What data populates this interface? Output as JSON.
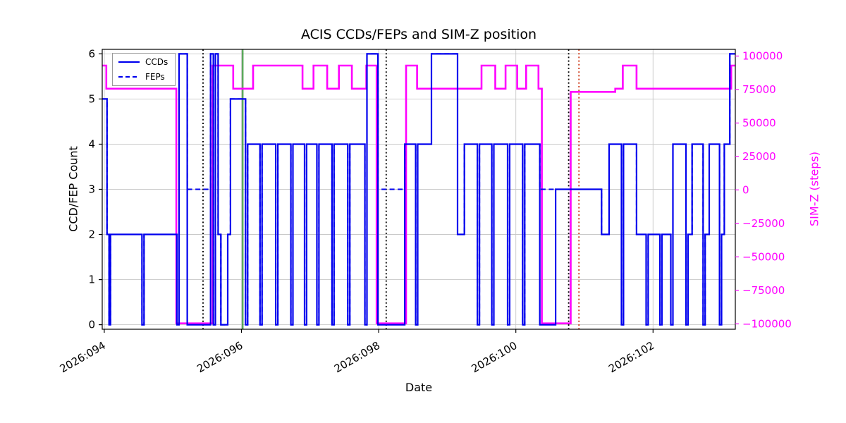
{
  "title": "ACIS CCDs/FEPs and SIM-Z position",
  "axes": {
    "xlabel": "Date",
    "ylabel_left": "CCD/FEP Count",
    "ylabel_right": "SIM-Z (steps)"
  },
  "legend": {
    "entries": [
      {
        "label": "CCDs",
        "line": "solid"
      },
      {
        "label": "FEPs",
        "line": "dashed"
      }
    ]
  },
  "chart_data": {
    "type": "line",
    "title": "ACIS CCDs/FEPs and SIM-Z position",
    "xlabel": "Date",
    "ylabel_left": "CCD/FEP Count",
    "ylabel_right": "SIM-Z (steps)",
    "grid": true,
    "legend_position": "upper left",
    "xlim": [
      93.97,
      103.2
    ],
    "ylim_left": [
      -0.1,
      6.1
    ],
    "ylim_right": [
      -104000,
      105000
    ],
    "x_ticks": [
      {
        "value": 94,
        "label": "2026:094"
      },
      {
        "value": 96,
        "label": "2026:096"
      },
      {
        "value": 98,
        "label": "2026:098"
      },
      {
        "value": 100,
        "label": "2026:100"
      },
      {
        "value": 102,
        "label": "2026:102"
      }
    ],
    "y_ticks_left": [
      {
        "value": 0,
        "label": "0"
      },
      {
        "value": 1,
        "label": "1"
      },
      {
        "value": 2,
        "label": "2"
      },
      {
        "value": 3,
        "label": "3"
      },
      {
        "value": 4,
        "label": "4"
      },
      {
        "value": 5,
        "label": "5"
      },
      {
        "value": 6,
        "label": "6"
      }
    ],
    "y_ticks_right": [
      {
        "value": 100000,
        "label": "100000"
      },
      {
        "value": 75000,
        "label": "75000"
      },
      {
        "value": 50000,
        "label": "50000"
      },
      {
        "value": 25000,
        "label": "25000"
      },
      {
        "value": 0,
        "label": "0"
      },
      {
        "value": -25000,
        "label": "−25000"
      },
      {
        "value": -50000,
        "label": "−50000"
      },
      {
        "value": -75000,
        "label": "−75000"
      },
      {
        "value": -100000,
        "label": "−100000"
      }
    ],
    "colors": {
      "line_blue": "#0000ee",
      "simz_magenta": "#ff00ff",
      "grid": "#c8c8c8",
      "black": "#000000",
      "green_vline": "#228b22",
      "red_vline": "#cc3311"
    },
    "series": [
      {
        "name": "CCDs",
        "axis": "left",
        "style": "solid",
        "color_key": "line_blue",
        "width": 2.2,
        "steps": [
          [
            93.97,
            5
          ],
          [
            94.04,
            2
          ],
          [
            94.07,
            0
          ],
          [
            94.09,
            2
          ],
          [
            94.55,
            0
          ],
          [
            94.58,
            2
          ],
          [
            95.06,
            0
          ],
          [
            95.09,
            6
          ],
          [
            95.21,
            0
          ],
          [
            95.55,
            6
          ],
          [
            95.59,
            0
          ],
          [
            95.62,
            6
          ],
          [
            95.66,
            2
          ],
          [
            95.7,
            0
          ],
          [
            95.8,
            2
          ],
          [
            95.84,
            5
          ],
          [
            96.06,
            0
          ],
          [
            96.09,
            4
          ],
          [
            96.27,
            0
          ],
          [
            96.3,
            4
          ],
          [
            96.5,
            0
          ],
          [
            96.53,
            4
          ],
          [
            96.72,
            0
          ],
          [
            96.75,
            4
          ],
          [
            96.92,
            0
          ],
          [
            96.95,
            4
          ],
          [
            97.1,
            0
          ],
          [
            97.13,
            4
          ],
          [
            97.32,
            0
          ],
          [
            97.35,
            4
          ],
          [
            97.55,
            0
          ],
          [
            97.58,
            4
          ],
          [
            97.8,
            0
          ],
          [
            97.83,
            6
          ],
          [
            97.99,
            0
          ],
          [
            98.38,
            4
          ],
          [
            98.54,
            0
          ],
          [
            98.57,
            4
          ],
          [
            98.77,
            6
          ],
          [
            99.15,
            2
          ],
          [
            99.25,
            4
          ],
          [
            99.44,
            0
          ],
          [
            99.47,
            4
          ],
          [
            99.65,
            0
          ],
          [
            99.68,
            4
          ],
          [
            99.88,
            0
          ],
          [
            99.91,
            4
          ],
          [
            100.1,
            0
          ],
          [
            100.13,
            4
          ],
          [
            100.35,
            0
          ],
          [
            100.58,
            3
          ],
          [
            101.25,
            2
          ],
          [
            101.36,
            4
          ],
          [
            101.54,
            0
          ],
          [
            101.57,
            4
          ],
          [
            101.76,
            2
          ],
          [
            101.9,
            0
          ],
          [
            101.93,
            2
          ],
          [
            102.1,
            0
          ],
          [
            102.13,
            2
          ],
          [
            102.26,
            0
          ],
          [
            102.29,
            4
          ],
          [
            102.48,
            0
          ],
          [
            102.51,
            2
          ],
          [
            102.57,
            4
          ],
          [
            102.73,
            0
          ],
          [
            102.76,
            2
          ],
          [
            102.82,
            4
          ],
          [
            102.97,
            0
          ],
          [
            103.0,
            2
          ],
          [
            103.04,
            4
          ],
          [
            103.12,
            6
          ]
        ]
      },
      {
        "name": "FEPs",
        "axis": "left",
        "style": "dashed",
        "color_key": "line_blue",
        "width": 2.0,
        "steps": [
          [
            93.97,
            5
          ],
          [
            94.04,
            2
          ],
          [
            94.07,
            0
          ],
          [
            94.09,
            2
          ],
          [
            94.55,
            0
          ],
          [
            94.58,
            2
          ],
          [
            95.06,
            0
          ],
          [
            95.09,
            6
          ],
          [
            95.21,
            3
          ],
          [
            95.55,
            6
          ],
          [
            95.59,
            0
          ],
          [
            95.62,
            6
          ],
          [
            95.66,
            2
          ],
          [
            95.7,
            0
          ],
          [
            95.8,
            2
          ],
          [
            95.84,
            5
          ],
          [
            96.06,
            0
          ],
          [
            96.09,
            4
          ],
          [
            96.27,
            0
          ],
          [
            96.3,
            4
          ],
          [
            96.5,
            0
          ],
          [
            96.53,
            4
          ],
          [
            96.72,
            0
          ],
          [
            96.75,
            4
          ],
          [
            96.92,
            0
          ],
          [
            96.95,
            4
          ],
          [
            97.1,
            0
          ],
          [
            97.13,
            4
          ],
          [
            97.32,
            0
          ],
          [
            97.35,
            4
          ],
          [
            97.55,
            0
          ],
          [
            97.58,
            4
          ],
          [
            97.8,
            0
          ],
          [
            97.83,
            6
          ],
          [
            97.99,
            3
          ],
          [
            98.38,
            4
          ],
          [
            98.54,
            0
          ],
          [
            98.57,
            4
          ],
          [
            98.77,
            6
          ],
          [
            99.15,
            2
          ],
          [
            99.25,
            4
          ],
          [
            99.44,
            0
          ],
          [
            99.47,
            4
          ],
          [
            99.65,
            0
          ],
          [
            99.68,
            4
          ],
          [
            99.88,
            0
          ],
          [
            99.91,
            4
          ],
          [
            100.1,
            0
          ],
          [
            100.13,
            4
          ],
          [
            100.35,
            3
          ],
          [
            100.58,
            3
          ],
          [
            101.25,
            2
          ],
          [
            101.36,
            4
          ],
          [
            101.54,
            0
          ],
          [
            101.57,
            4
          ],
          [
            101.76,
            2
          ],
          [
            101.9,
            0
          ],
          [
            101.93,
            2
          ],
          [
            102.1,
            0
          ],
          [
            102.13,
            2
          ],
          [
            102.26,
            0
          ],
          [
            102.29,
            4
          ],
          [
            102.48,
            0
          ],
          [
            102.51,
            2
          ],
          [
            102.57,
            4
          ],
          [
            102.73,
            0
          ],
          [
            102.76,
            2
          ],
          [
            102.82,
            4
          ],
          [
            102.97,
            0
          ],
          [
            103.0,
            2
          ],
          [
            103.04,
            4
          ],
          [
            103.12,
            6
          ]
        ]
      },
      {
        "name": "SIM-Z",
        "axis": "right",
        "style": "solid",
        "color_key": "simz_magenta",
        "width": 2.6,
        "steps": [
          [
            93.97,
            92904
          ],
          [
            94.03,
            75624
          ],
          [
            95.05,
            -99616
          ],
          [
            95.58,
            92904
          ],
          [
            95.88,
            75624
          ],
          [
            96.17,
            92904
          ],
          [
            96.89,
            75624
          ],
          [
            97.05,
            92904
          ],
          [
            97.25,
            75624
          ],
          [
            97.42,
            92904
          ],
          [
            97.61,
            75624
          ],
          [
            97.82,
            92904
          ],
          [
            97.97,
            -99616
          ],
          [
            98.4,
            92904
          ],
          [
            98.56,
            75624
          ],
          [
            99.5,
            92904
          ],
          [
            99.7,
            75624
          ],
          [
            99.85,
            92904
          ],
          [
            100.02,
            75624
          ],
          [
            100.15,
            92904
          ],
          [
            100.33,
            75624
          ],
          [
            100.38,
            -99616
          ],
          [
            100.8,
            73256
          ],
          [
            101.45,
            75624
          ],
          [
            101.56,
            92904
          ],
          [
            101.76,
            75624
          ],
          [
            103.14,
            92904
          ]
        ]
      }
    ],
    "vlines": [
      {
        "x": 95.44,
        "color_key": "black",
        "style": "dotted"
      },
      {
        "x": 96.02,
        "color_key": "green_vline",
        "style": "solid"
      },
      {
        "x": 98.11,
        "color_key": "black",
        "style": "dotted"
      },
      {
        "x": 100.77,
        "color_key": "black",
        "style": "dotted"
      },
      {
        "x": 100.92,
        "color_key": "red_vline",
        "style": "dotted"
      }
    ]
  }
}
